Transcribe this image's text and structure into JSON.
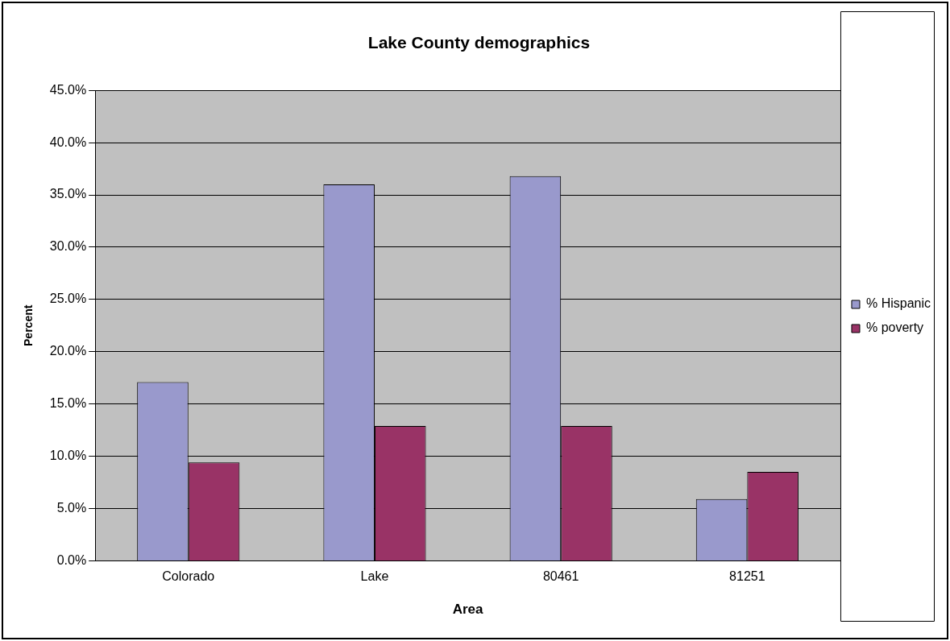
{
  "chart_data": {
    "type": "bar",
    "title": "Lake County demographics",
    "xlabel": "Area",
    "ylabel": "Percent",
    "categories": [
      "Colorado",
      "Lake",
      "80461",
      "81251"
    ],
    "series": [
      {
        "name": "% Hispanic",
        "color": "#9999cc",
        "values": [
          17.1,
          36.0,
          36.8,
          5.9
        ]
      },
      {
        "name": "% poverty",
        "color": "#993366",
        "values": [
          9.4,
          12.9,
          12.9,
          8.5
        ]
      }
    ],
    "ylim": [
      0,
      45
    ],
    "yticks": [
      {
        "value": 0,
        "label": "0.0%"
      },
      {
        "value": 5,
        "label": "5.0%"
      },
      {
        "value": 10,
        "label": "10.0%"
      },
      {
        "value": 15,
        "label": "15.0%"
      },
      {
        "value": 20,
        "label": "20.0%"
      },
      {
        "value": 25,
        "label": "25.0%"
      },
      {
        "value": 30,
        "label": "30.0%"
      },
      {
        "value": 35,
        "label": "35.0%"
      },
      {
        "value": 40,
        "label": "40.0%"
      },
      {
        "value": 45,
        "label": "45.0%"
      }
    ],
    "grid": "y",
    "legend": "right"
  }
}
